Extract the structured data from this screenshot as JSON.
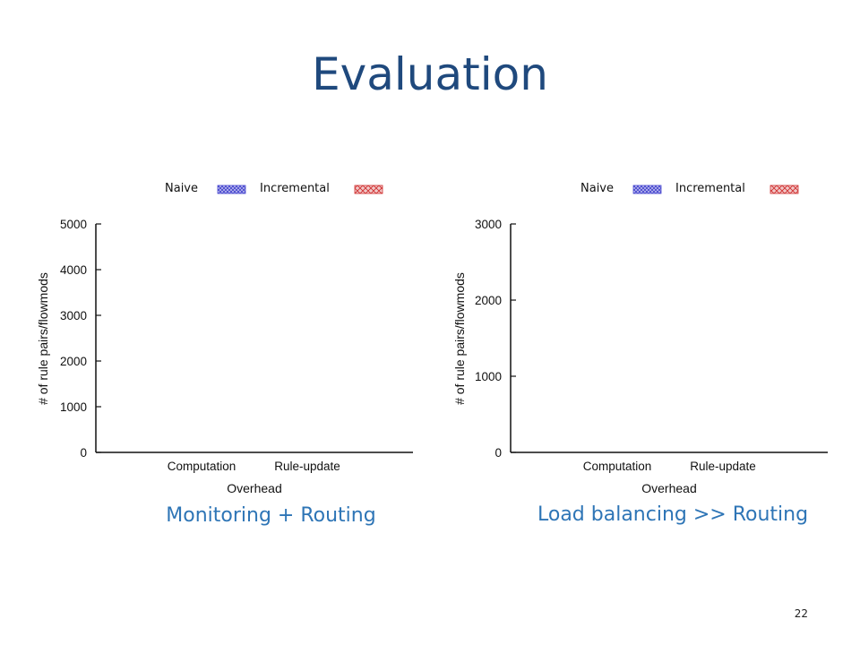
{
  "slide": {
    "title": "Evaluation",
    "page_number": "22",
    "captions": [
      "Monitoring + Routing",
      "Load balancing >> Routing"
    ]
  },
  "colors": {
    "naive_fill": "#4a4ad0",
    "naive_bg": "#c8c8f0",
    "incremental_fill": "#d03030",
    "incremental_bg": "#f0c8c8",
    "title": "#1f497d",
    "caption": "#2e75b6"
  },
  "chart_data": [
    {
      "type": "bar",
      "title": "",
      "categories": [
        "Computation",
        "Rule-update"
      ],
      "series": [
        {
          "name": "Naive",
          "values": [
            null,
            null
          ]
        },
        {
          "name": "Incremental",
          "values": [
            null,
            null
          ]
        }
      ],
      "xlabel": "Overhead",
      "ylabel": "# of rule pairs/flowmods",
      "ylim": [
        0,
        5000
      ],
      "yticks": [
        0,
        1000,
        2000,
        3000,
        4000,
        5000
      ],
      "legend": "top",
      "grid": false
    },
    {
      "type": "bar",
      "title": "",
      "categories": [
        "Computation",
        "Rule-update"
      ],
      "series": [
        {
          "name": "Naive",
          "values": [
            null,
            null
          ]
        },
        {
          "name": "Incremental",
          "values": [
            null,
            null
          ]
        }
      ],
      "xlabel": "Overhead",
      "ylabel": "# of rule pairs/flowmods",
      "ylim": [
        0,
        3000
      ],
      "yticks": [
        0,
        1000,
        2000,
        3000
      ],
      "legend": "top",
      "grid": false
    }
  ]
}
